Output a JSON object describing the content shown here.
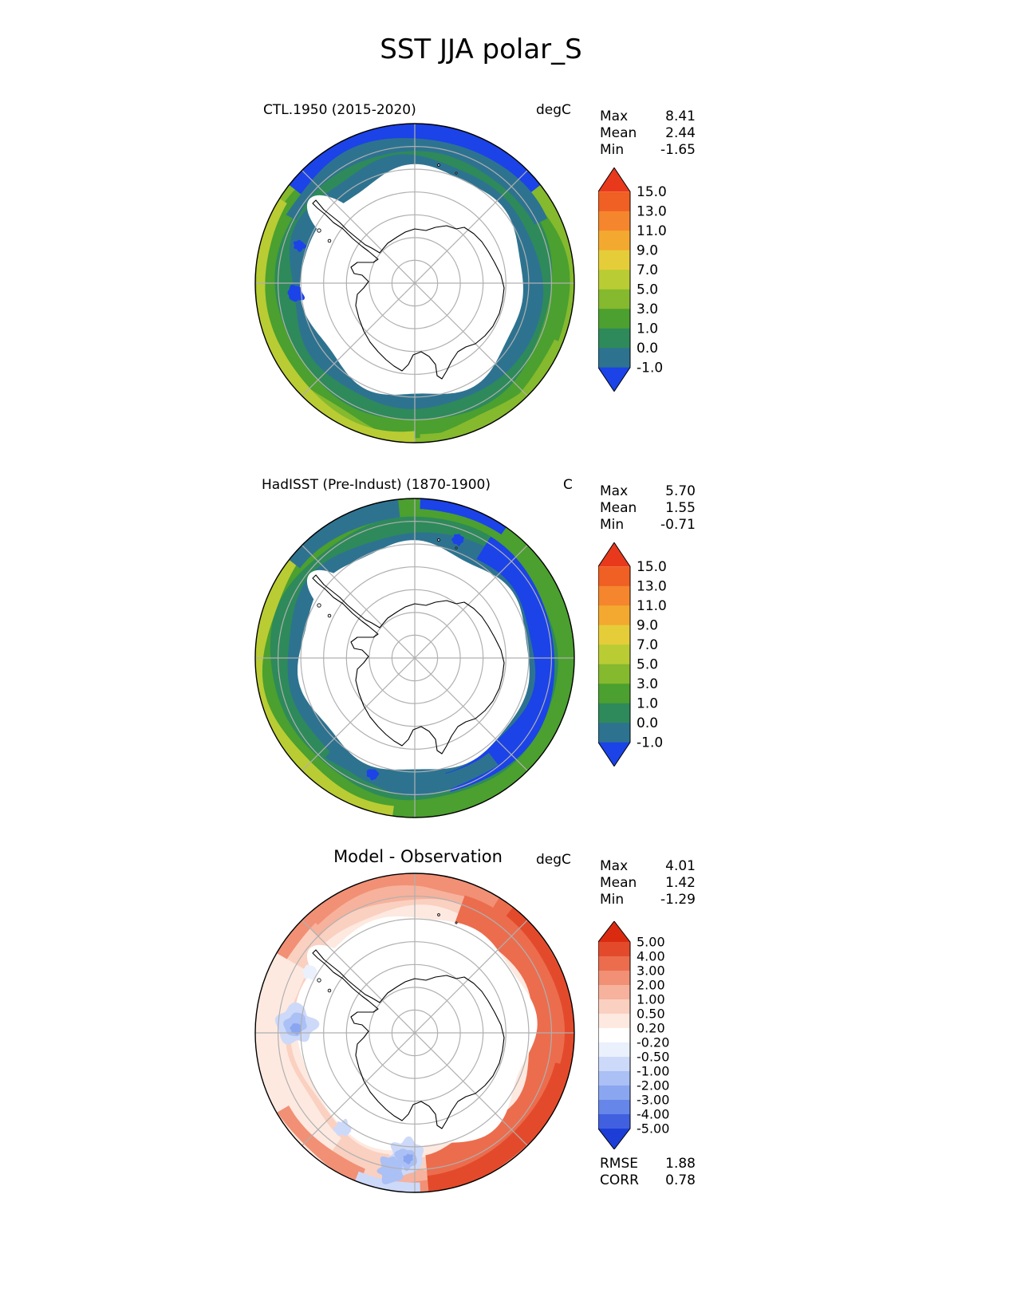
{
  "title": "SST JJA polar_S",
  "panels": [
    {
      "label": "CTL.1950 (2015-2020)",
      "units": "degC",
      "stats": [
        {
          "label": "Max",
          "value": "8.41"
        },
        {
          "label": "Mean",
          "value": "2.44"
        },
        {
          "label": "Min",
          "value": "-1.65"
        }
      ],
      "colorbar": {
        "ticks": [
          "15.0",
          "13.0",
          "11.0",
          "9.0",
          "7.0",
          "5.0",
          "3.0",
          "1.0",
          "0.0",
          "-1.0"
        ],
        "colors": [
          "#e8391d",
          "#f05f23",
          "#f5862d",
          "#f3a92f",
          "#e5cd39",
          "#b9cc33",
          "#85b92e",
          "#4ba02f",
          "#2e8a5a",
          "#2d7390",
          "#1b43e8"
        ]
      }
    },
    {
      "label": "HadISST (Pre-Indust) (1870-1900)",
      "units": "C",
      "stats": [
        {
          "label": "Max",
          "value": "5.70"
        },
        {
          "label": "Mean",
          "value": "1.55"
        },
        {
          "label": "Min",
          "value": "-0.71"
        }
      ],
      "colorbar": {
        "ticks": [
          "15.0",
          "13.0",
          "11.0",
          "9.0",
          "7.0",
          "5.0",
          "3.0",
          "1.0",
          "0.0",
          "-1.0"
        ],
        "colors": [
          "#e8391d",
          "#f05f23",
          "#f5862d",
          "#f3a92f",
          "#e5cd39",
          "#b9cc33",
          "#85b92e",
          "#4ba02f",
          "#2e8a5a",
          "#2d7390",
          "#1b43e8"
        ]
      }
    },
    {
      "label": "Model - Observation",
      "units": "degC",
      "stats": [
        {
          "label": "Max",
          "value": "4.01"
        },
        {
          "label": "Mean",
          "value": "1.42"
        },
        {
          "label": "Min",
          "value": "-1.29"
        }
      ],
      "colorbar": {
        "ticks": [
          "5.00",
          "4.00",
          "3.00",
          "2.00",
          "1.00",
          "0.50",
          "0.20",
          "-0.20",
          "-0.50",
          "-1.00",
          "-2.00",
          "-3.00",
          "-4.00",
          "-5.00"
        ],
        "colors": [
          "#da2b10",
          "#e34a2b",
          "#eb6d4e",
          "#f19075",
          "#f6b29c",
          "#fad0c0",
          "#fde9e0",
          "#ffffff",
          "#eaf0fc",
          "#cdd9f9",
          "#abc0f5",
          "#8aa6f0",
          "#6686ea",
          "#4160e0",
          "#1c3ed6"
        ]
      },
      "metrics": [
        {
          "label": "RMSE",
          "value": "1.88"
        },
        {
          "label": "CORR",
          "value": "0.78"
        }
      ]
    }
  ],
  "chart_data": [
    {
      "type": "heatmap",
      "subtype": "south-polar-stereographic-map",
      "variable": "SST",
      "season": "JJA",
      "region": "polar_S",
      "title": "CTL.1950 (2015-2020)",
      "units": "degC",
      "stats": {
        "max": 8.41,
        "mean": 2.44,
        "min": -1.65
      },
      "levels": [
        -1.0,
        0.0,
        1.0,
        3.0,
        5.0,
        7.0,
        9.0,
        11.0,
        13.0,
        15.0
      ],
      "extend": "both",
      "legend_position": "right"
    },
    {
      "type": "heatmap",
      "subtype": "south-polar-stereographic-map",
      "variable": "SST",
      "season": "JJA",
      "region": "polar_S",
      "title": "HadISST (Pre-Indust) (1870-1900)",
      "units": "C",
      "stats": {
        "max": 5.7,
        "mean": 1.55,
        "min": -0.71
      },
      "levels": [
        -1.0,
        0.0,
        1.0,
        3.0,
        5.0,
        7.0,
        9.0,
        11.0,
        13.0,
        15.0
      ],
      "extend": "both",
      "legend_position": "right"
    },
    {
      "type": "heatmap",
      "subtype": "south-polar-stereographic-map",
      "variable": "SST difference",
      "season": "JJA",
      "region": "polar_S",
      "title": "Model - Observation",
      "units": "degC",
      "stats": {
        "max": 4.01,
        "mean": 1.42,
        "min": -1.29
      },
      "levels": [
        -5.0,
        -4.0,
        -3.0,
        -2.0,
        -1.0,
        -0.5,
        -0.2,
        0.2,
        0.5,
        1.0,
        2.0,
        3.0,
        4.0,
        5.0
      ],
      "metrics": {
        "rmse": 1.88,
        "corr": 0.78
      },
      "extend": "both",
      "legend_position": "right"
    }
  ]
}
